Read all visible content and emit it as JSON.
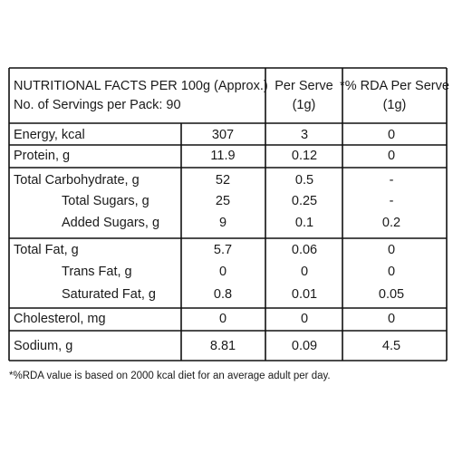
{
  "table": {
    "header": [
      [
        "NUTRITIONAL FACTS PER 100g (Approx.)",
        "No. of Servings per Pack: 90"
      ],
      [
        "Per Serve",
        "(1g)"
      ],
      [
        "*% RDA Per Serve",
        "(1g)"
      ]
    ],
    "rows": [
      [
        "Energy, kcal",
        "307",
        "3",
        "0"
      ],
      [
        "Protein, g",
        "11.9",
        "0.12",
        "0"
      ],
      [
        "Total Carbohydrate, g",
        "52",
        "0.5",
        "-"
      ],
      [
        "Total Sugars, g",
        "25",
        "0.25",
        "-"
      ],
      [
        "Added Sugars, g",
        "9",
        "0.1",
        "0.2"
      ],
      [
        "Total Fat, g",
        "5.7",
        "0.06",
        "0"
      ],
      [
        "Trans Fat, g",
        "0",
        "0",
        "0"
      ],
      [
        "Saturated Fat, g",
        "0.8",
        "0.01",
        "0.05"
      ],
      [
        "Cholesterol, mg",
        "0",
        "0",
        "0"
      ],
      [
        "Sodium, g",
        "8.81",
        "0.09",
        "4.5"
      ]
    ],
    "footnote": "*%RDA value is based on 2000 kcal diet for an average adult per day."
  }
}
